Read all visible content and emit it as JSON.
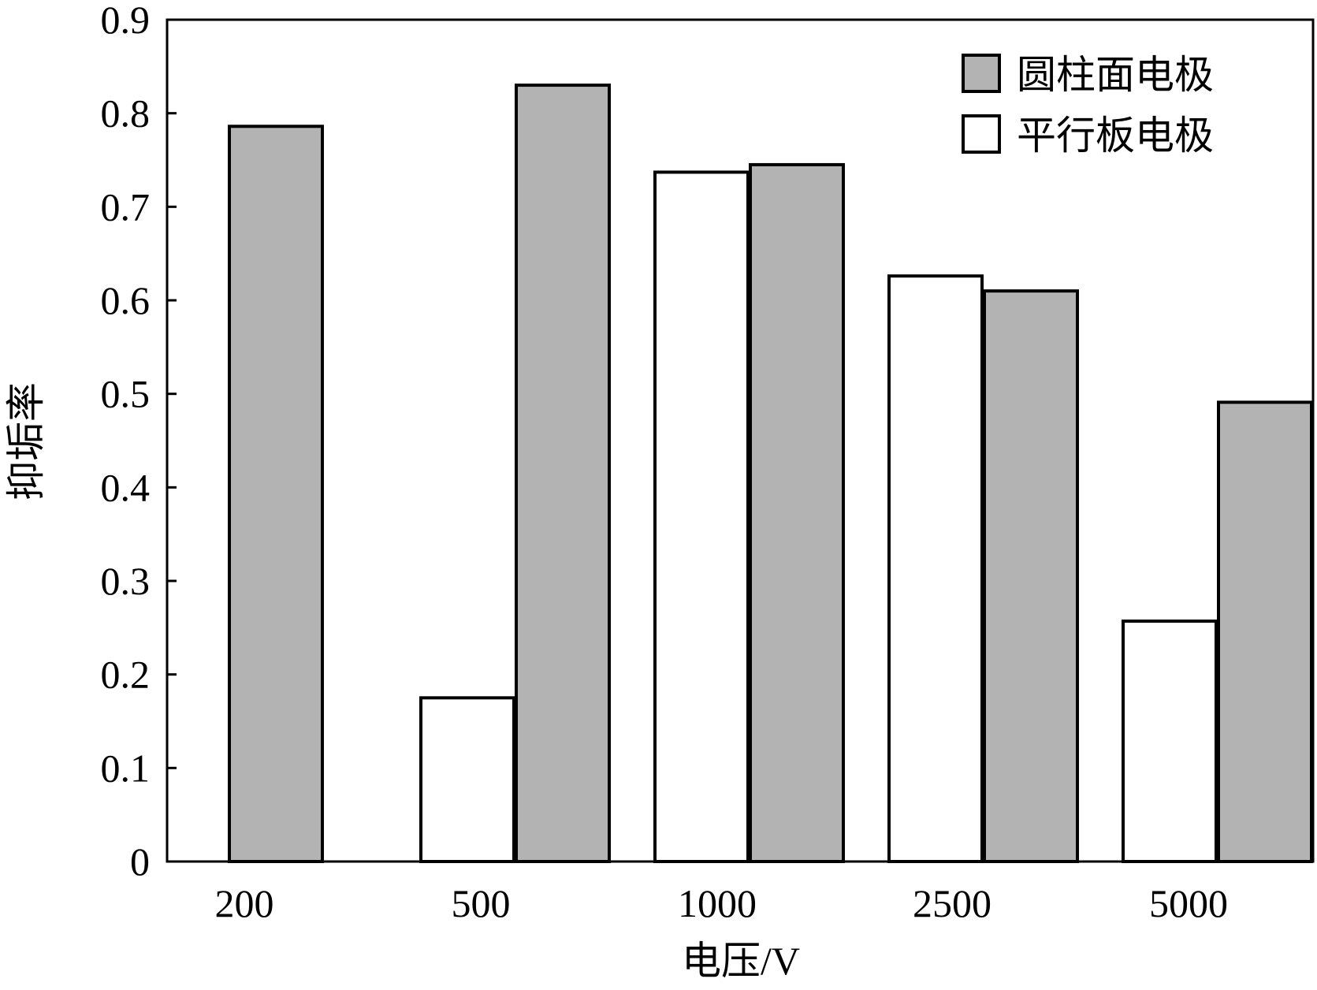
{
  "chart_data": {
    "type": "bar",
    "title": "",
    "xlabel": "电压/V",
    "ylabel": "抑垢率",
    "categories": [
      "200",
      "500",
      "1000",
      "2500",
      "5000"
    ],
    "ylim": [
      0,
      0.9
    ],
    "yticks": [
      "0",
      "0.1",
      "0.2",
      "0.3",
      "0.4",
      "0.5",
      "0.6",
      "0.7",
      "0.8",
      "0.9"
    ],
    "grid": false,
    "legend_position": "top-right",
    "series": [
      {
        "name": "平行板电极",
        "color": "#ffffff",
        "values": [
          null,
          0.175,
          0.737,
          0.626,
          0.257
        ]
      },
      {
        "name": "圆柱面电极",
        "color": "#b3b3b3",
        "values": [
          0.786,
          0.83,
          0.745,
          0.61,
          0.491
        ]
      }
    ]
  }
}
